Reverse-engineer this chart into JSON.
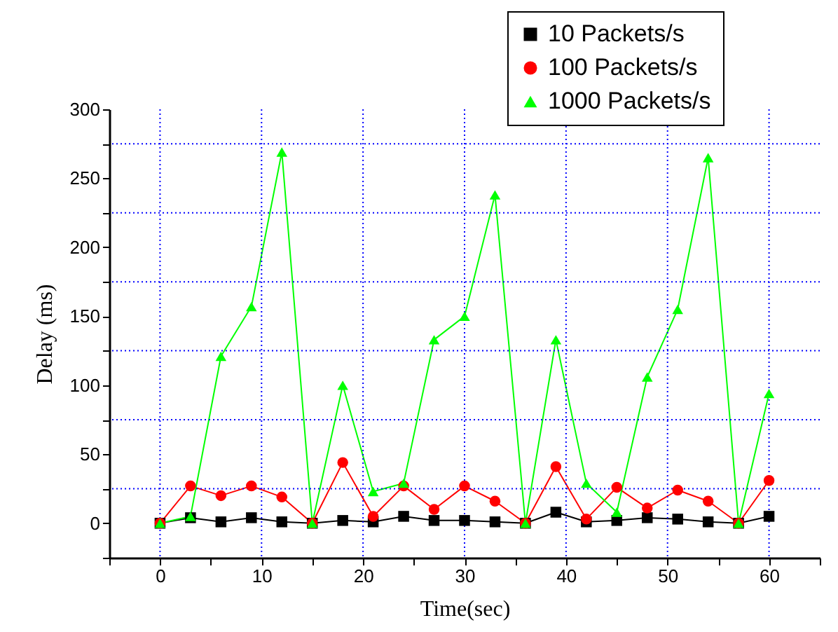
{
  "chart_data": {
    "type": "line",
    "xlabel": "Time(sec)",
    "ylabel": "Delay (ms)",
    "x": [
      0,
      3,
      6,
      9,
      12,
      15,
      18,
      21,
      24,
      27,
      30,
      33,
      36,
      39,
      42,
      45,
      48,
      51,
      54,
      57,
      60
    ],
    "series": [
      {
        "name": "10 Packets/s",
        "color": "#000000",
        "marker": "square",
        "values": [
          0,
          4,
          1,
          4,
          1,
          0,
          2,
          1,
          5,
          2,
          2,
          1,
          0,
          8,
          1,
          2,
          4,
          3,
          1,
          0,
          5
        ]
      },
      {
        "name": "100 Packets/s",
        "color": "#ff0000",
        "marker": "circle",
        "values": [
          0,
          27,
          20,
          27,
          19,
          0,
          44,
          5,
          27,
          10,
          27,
          16,
          0,
          41,
          3,
          26,
          11,
          24,
          16,
          0,
          31
        ]
      },
      {
        "name": "1000 Packets/s",
        "color": "#00ff00",
        "marker": "triangle",
        "values": [
          0,
          5,
          121,
          157,
          269,
          0,
          100,
          23,
          29,
          133,
          150,
          238,
          0,
          133,
          29,
          8,
          106,
          155,
          265,
          0,
          94
        ]
      }
    ],
    "xlim": [
      -5,
      65
    ],
    "xticks": [
      {
        "value": -5,
        "label": null
      },
      0,
      {
        "value": 5,
        "label": null
      },
      10,
      {
        "value": 15,
        "label": null
      },
      20,
      {
        "value": 25,
        "label": null
      },
      30,
      {
        "value": 35,
        "label": null
      },
      40,
      {
        "value": 45,
        "label": null
      },
      50,
      {
        "value": 55,
        "label": null
      },
      60,
      {
        "value": 65,
        "label": null
      }
    ],
    "ylim": [
      -25,
      300
    ],
    "yticks": [
      {
        "value": -25,
        "label": null
      },
      0,
      {
        "value": 25,
        "label": null
      },
      50,
      {
        "value": 75,
        "label": null
      },
      100,
      {
        "value": 125,
        "label": null
      },
      150,
      {
        "value": 175,
        "label": null
      },
      200,
      {
        "value": 225,
        "label": null
      },
      250,
      {
        "value": 275,
        "label": null
      },
      300
    ],
    "grid": true,
    "legend": "top right",
    "line_style": "solid"
  }
}
